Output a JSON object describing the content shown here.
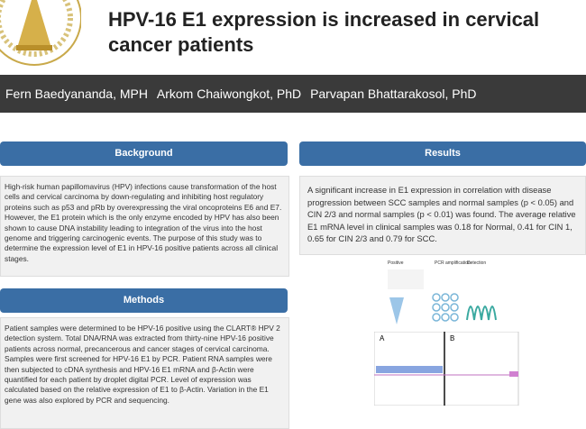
{
  "header": {
    "title": "HPV-16 E1 expression is increased in cervical cancer patients",
    "authors": [
      "Fern Baedyananda, MPH",
      "Arkom Chaiwongkot, PhD",
      "Parvapan Bhattarakosol, PhD"
    ]
  },
  "sections": [
    {
      "heading": "Background",
      "text": "High-risk human papillomavirus (HPV) infections cause transformation of the host cells and cervical carcinoma by down-regulating and inhibiting host regulatory proteins such as p53 and pRb by overexpressing the viral oncoproteins E6 and E7. However, the E1 protein which is the only enzyme encoded by HPV has also been shown to cause DNA instability leading to integration of the virus into the host genome and triggering carcinogenic events. The purpose of this study was to determine the expression level of E1 in HPV-16 positive patients across all clinical stages."
    },
    {
      "heading": "Methods",
      "text": "Patient samples were determined to be HPV-16 positive using the CLART® HPV 2 detection system. Total DNA/RNA was extracted from thirty-nine HPV-16 positive patients across normal, precancerous and cancer stages of cervical carcinoma. Samples were first screened for HPV-16 E1 by PCR. Patient RNA samples were then subjected to cDNA synthesis and HPV-16 E1 mRNA and β-Actin were quantified for each patient by droplet digital PCR. Level of expression was calculated based on the relative expression of E1 to β-Actin. Variation in the E1 gene was also explored by PCR and sequencing."
    },
    {
      "heading": "Results",
      "text": "A significant increase in E1 expression in correlation with disease progression between SCC samples and normal samples (p < 0.05) and CIN 2/3 and normal samples (p < 0.01) was found. The average relative E1 mRNA level in clinical samples was 0.18 for Normal, 0.41 for CIN 1, 0.65 for CIN 2/3 and 0.79 for SCC."
    }
  ],
  "figure": {
    "steps": [
      "Positive",
      "PCR amplification",
      "Detection"
    ],
    "panels": [
      "A",
      "B"
    ]
  }
}
